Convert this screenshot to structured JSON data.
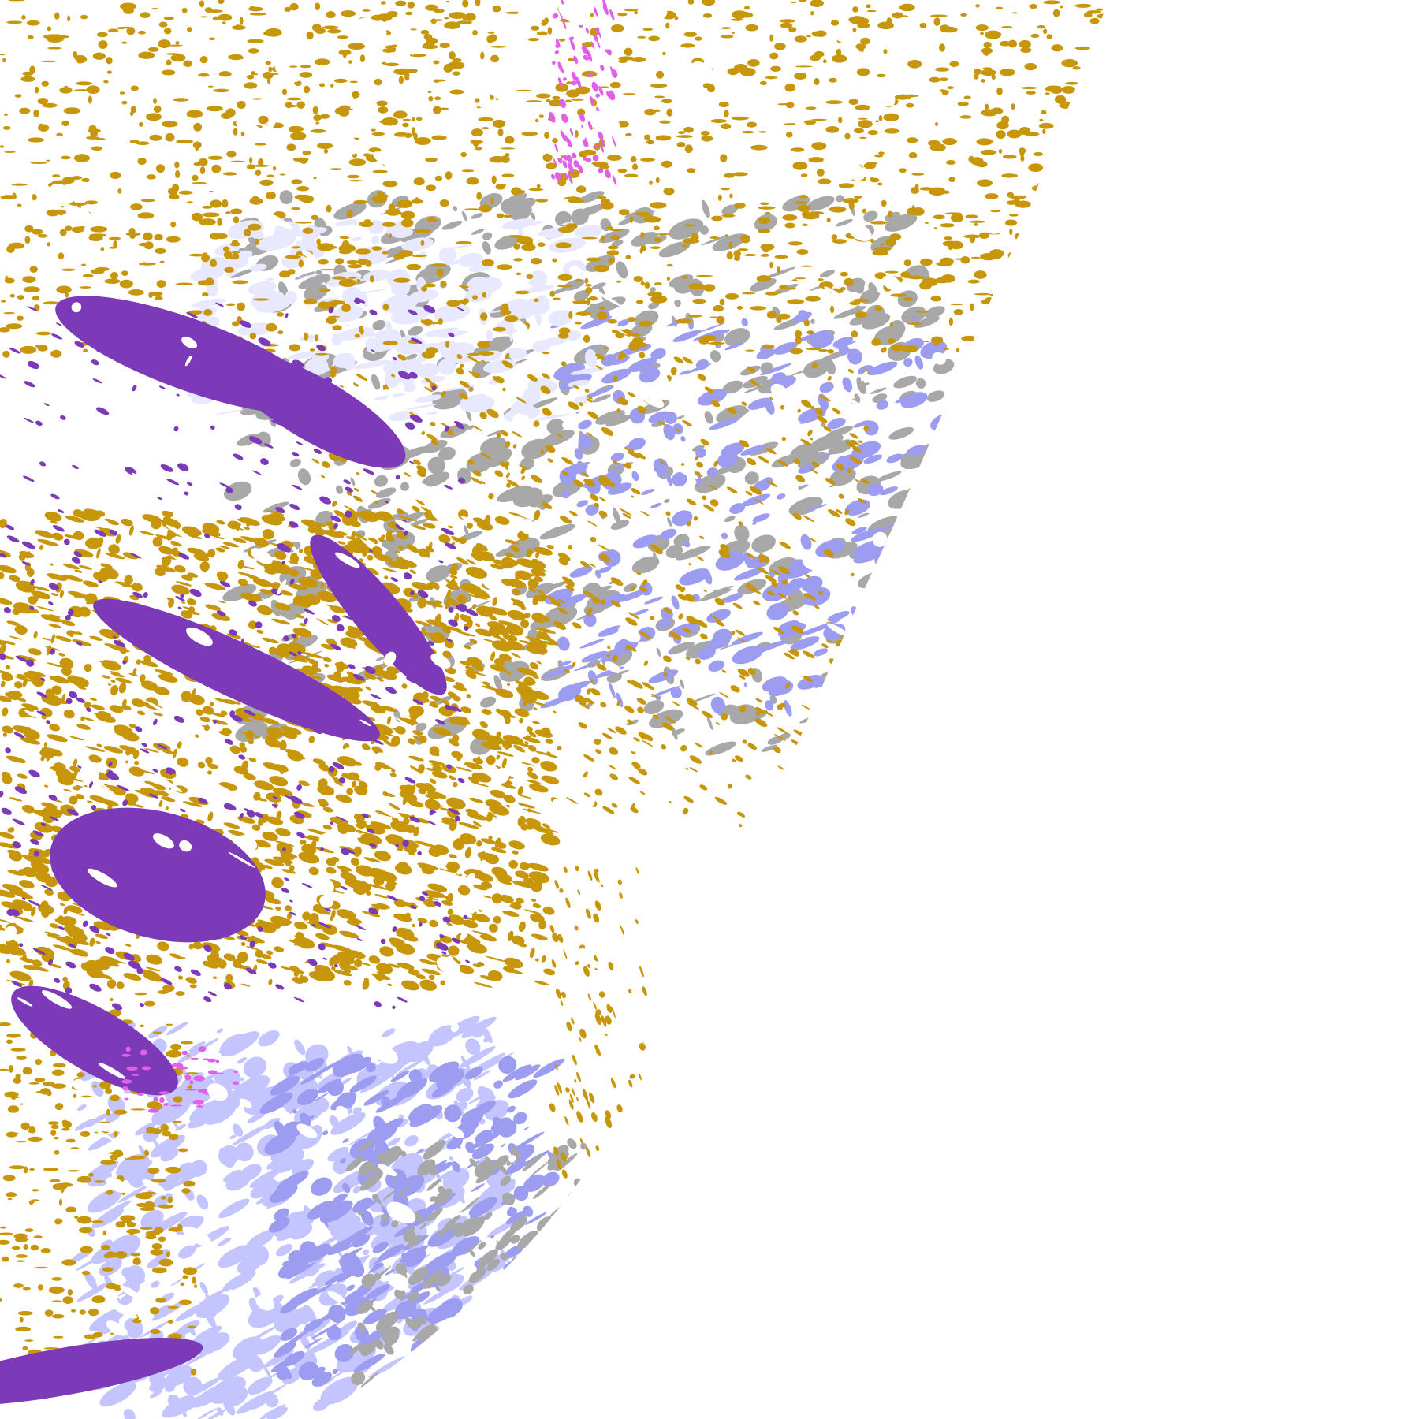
{
  "map": {
    "kind": "satellite-cloud-classification-disk",
    "background_color": "#ffffff",
    "palette": {
      "gold": "#c8960a",
      "purple": "#7c3ab8",
      "magenta": "#e060e8",
      "lavender_light": "#e8e8ff",
      "lavender": "#c4c4ff",
      "periwinkle": "#9c9cf0",
      "gray": "#a8a8a8",
      "dark_gray": "#8a8a8a"
    }
  }
}
